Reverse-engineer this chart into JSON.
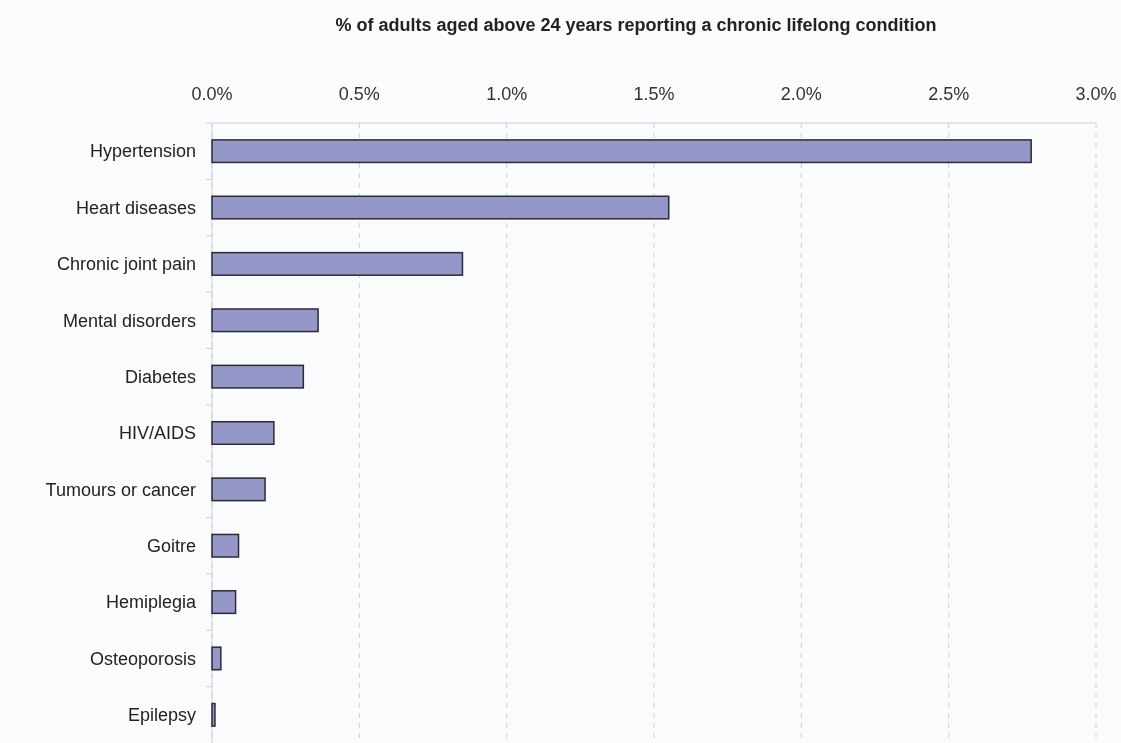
{
  "chart_data": {
    "type": "bar",
    "orientation": "horizontal",
    "title": "% of adults aged above 24 years reporting a chronic lifelong condition",
    "categories": [
      "Hypertension",
      "Heart diseases",
      "Chronic joint pain",
      "Mental disorders",
      "Diabetes",
      "HIV/AIDS",
      "Tumours or cancer",
      "Goitre",
      "Hemiplegia",
      "Osteoporosis",
      "Epilepsy"
    ],
    "values": [
      2.78,
      1.55,
      0.85,
      0.36,
      0.31,
      0.21,
      0.18,
      0.09,
      0.08,
      0.03,
      0.01
    ],
    "color": "#9597c9",
    "xlim": [
      0,
      3
    ],
    "xticks": [
      {
        "value": 0,
        "label": "0.0%"
      },
      {
        "value": 0.5,
        "label": "0.5%"
      },
      {
        "value": 1,
        "label": "1.0%"
      },
      {
        "value": 1.5,
        "label": "1.5%"
      },
      {
        "value": 2,
        "label": "2.0%"
      },
      {
        "value": 2.5,
        "label": "2.5%"
      },
      {
        "value": 3,
        "label": "3.0%"
      }
    ],
    "grid": "x"
  }
}
